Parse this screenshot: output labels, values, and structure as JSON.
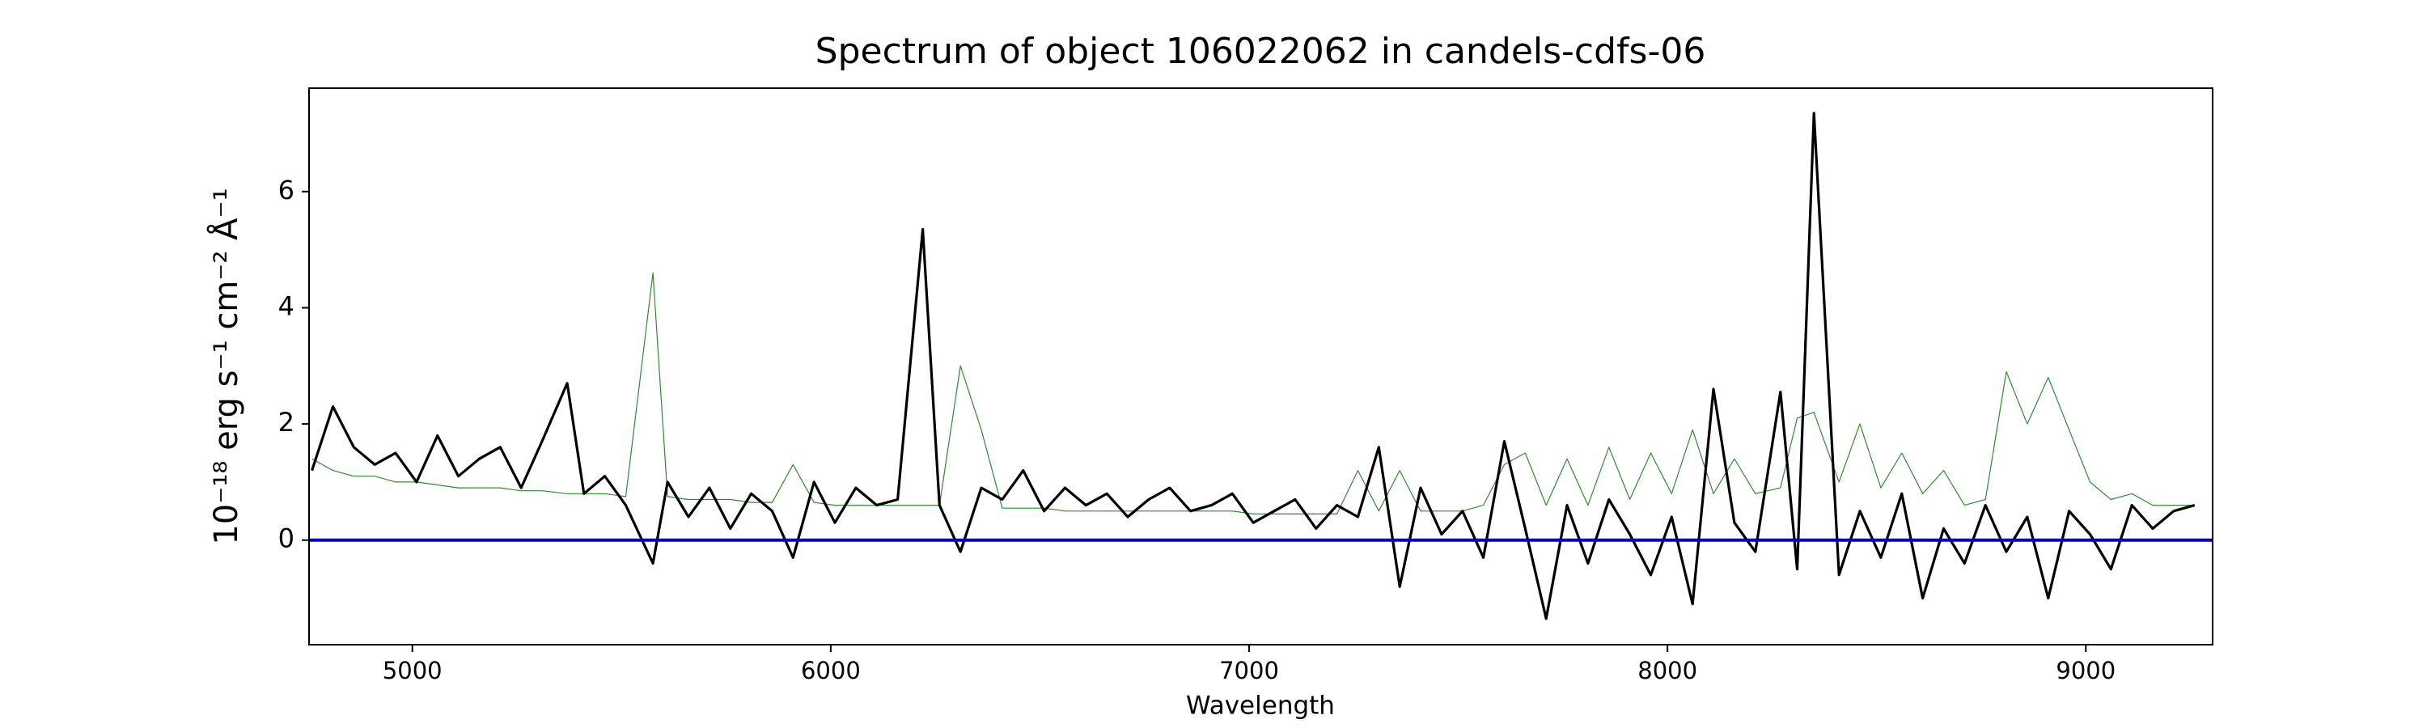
{
  "chart_data": {
    "type": "line",
    "title": "Spectrum of object 106022062 in candels-cdfs-06",
    "x_label": "Wavelength",
    "y_label": "10⁻¹⁸ erg s⁻¹ cm⁻² Å⁻¹",
    "x": [
      4760,
      4810,
      4860,
      4910,
      4960,
      5010,
      5060,
      5110,
      5160,
      5210,
      5260,
      5310,
      5370,
      5410,
      5460,
      5510,
      5575,
      5610,
      5660,
      5710,
      5760,
      5810,
      5860,
      5910,
      5960,
      6010,
      6060,
      6110,
      6160,
      6220,
      6260,
      6310,
      6360,
      6410,
      6460,
      6510,
      6560,
      6610,
      6660,
      6710,
      6760,
      6810,
      6860,
      6910,
      6960,
      7010,
      7060,
      7110,
      7160,
      7210,
      7260,
      7310,
      7360,
      7410,
      7460,
      7510,
      7560,
      7610,
      7660,
      7710,
      7760,
      7810,
      7860,
      7910,
      7960,
      8010,
      8060,
      8110,
      8160,
      8210,
      8270,
      8310,
      8350,
      8410,
      8460,
      8510,
      8560,
      8610,
      8660,
      8710,
      8760,
      8810,
      8860,
      8910,
      8960,
      9010,
      9060,
      9110,
      9160,
      9210,
      9260
    ],
    "series": [
      {
        "color": "#2e8b2e",
        "width": 1.2,
        "values": [
          1.4,
          1.2,
          1.1,
          1.1,
          1.0,
          1.0,
          0.95,
          0.9,
          0.9,
          0.9,
          0.85,
          0.85,
          0.8,
          0.8,
          0.8,
          0.75,
          4.6,
          0.75,
          0.7,
          0.7,
          0.7,
          0.65,
          0.65,
          1.3,
          0.65,
          0.6,
          0.6,
          0.6,
          0.6,
          0.6,
          0.6,
          3.0,
          1.9,
          0.55,
          0.55,
          0.55,
          0.5,
          0.5,
          0.5,
          0.5,
          0.5,
          0.5,
          0.5,
          0.5,
          0.5,
          0.45,
          0.45,
          0.45,
          0.45,
          0.45,
          1.2,
          0.5,
          1.2,
          0.5,
          0.5,
          0.5,
          0.6,
          1.3,
          1.5,
          0.6,
          1.4,
          0.6,
          1.6,
          0.7,
          1.5,
          0.8,
          1.9,
          0.8,
          1.4,
          0.8,
          0.9,
          2.1,
          2.2,
          1.0,
          2.0,
          0.9,
          1.5,
          0.8,
          1.2,
          0.6,
          0.7,
          2.9,
          2.0,
          2.8,
          1.9,
          1.0,
          0.7,
          0.8,
          0.6,
          0.6,
          0.6
        ]
      },
      {
        "color": "#000000",
        "width": 3.2,
        "values": [
          1.2,
          2.3,
          1.6,
          1.3,
          1.5,
          1.0,
          1.8,
          1.1,
          1.4,
          1.6,
          0.9,
          1.7,
          2.7,
          0.8,
          1.1,
          0.6,
          -0.4,
          1.0,
          0.4,
          0.9,
          0.2,
          0.8,
          0.5,
          -0.3,
          1.0,
          0.3,
          0.9,
          0.6,
          0.7,
          5.35,
          0.6,
          -0.2,
          0.9,
          0.7,
          1.2,
          0.5,
          0.9,
          0.6,
          0.8,
          0.4,
          0.7,
          0.9,
          0.5,
          0.6,
          0.8,
          0.3,
          0.5,
          0.7,
          0.2,
          0.6,
          0.4,
          1.6,
          -0.8,
          0.9,
          0.1,
          0.5,
          -0.3,
          1.7,
          0.2,
          -1.35,
          0.6,
          -0.4,
          0.7,
          0.1,
          -0.6,
          0.4,
          -1.1,
          2.6,
          0.3,
          -0.2,
          2.55,
          -0.5,
          7.35,
          -0.6,
          0.5,
          -0.3,
          0.8,
          -1.0,
          0.2,
          -0.4,
          0.6,
          -0.2,
          0.4,
          -1.0,
          0.5,
          0.1,
          -0.5,
          0.6,
          0.2,
          0.5,
          0.6
        ]
      }
    ],
    "hline": 0,
    "hline_color": "#0000cc",
    "xlim": [
      4753,
      9303
    ],
    "xticks": [
      5000,
      6000,
      7000,
      8000,
      9000
    ],
    "ylim": [
      -1.8,
      7.78
    ],
    "yticks": [
      0,
      2,
      4,
      6
    ]
  }
}
